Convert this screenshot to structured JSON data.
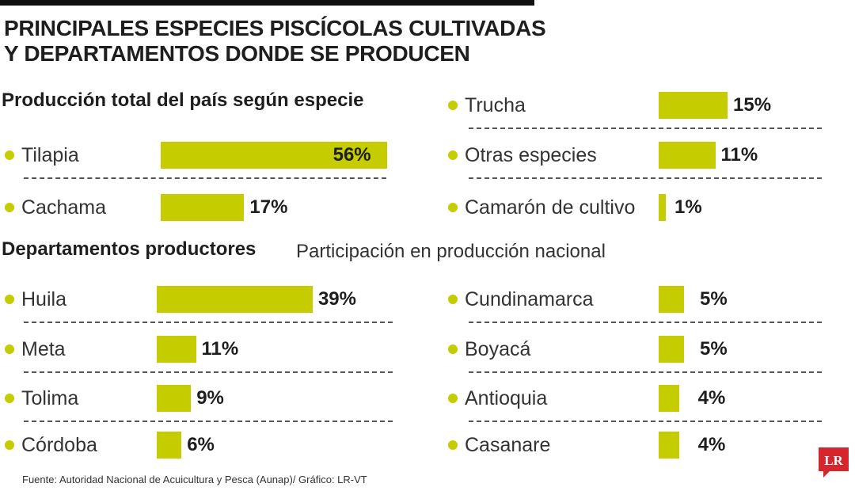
{
  "header": {
    "title_line1": "PRINCIPALES ESPECIES PISCÍCOLAS CULTIVADAS",
    "title_line2": "Y DEPARTAMENTOS DONDE SE PRODUCEN"
  },
  "colors": {
    "bar": "#c5cc00",
    "dot": "#c5cc00",
    "logo": "#d6262d"
  },
  "chart_data": [
    {
      "type": "bar",
      "title": "Producción total del país según especie",
      "categories": [
        "Tilapia",
        "Cachama",
        "Trucha",
        "Otras especies",
        "Camarón de cultivo"
      ],
      "values": [
        56,
        17,
        15,
        11,
        1
      ],
      "value_labels": [
        "56%",
        "17%",
        "15%",
        "11%",
        "1%"
      ],
      "unit": "%"
    },
    {
      "type": "bar",
      "title": "Departamentos productores",
      "subtitle": "Participación en producción nacional",
      "categories": [
        "Huila",
        "Meta",
        "Tolima",
        "Córdoba",
        "Cundinamarca",
        "Boyacá",
        "Antioquia",
        "Casanare"
      ],
      "values": [
        39,
        11,
        9,
        6,
        5,
        5,
        4,
        4
      ],
      "value_labels": [
        "39%",
        "11%",
        "9%",
        "6%",
        "5%",
        "5%",
        "4%",
        "4%"
      ],
      "unit": "%"
    }
  ],
  "footer": {
    "source": "Fuente: Autoridad Nacional de  Acuicultura y Pesca (Aunap)/ Gráfico: LR-VT"
  },
  "logo": {
    "text": "LR",
    "icon": "lr-logo-icon"
  }
}
